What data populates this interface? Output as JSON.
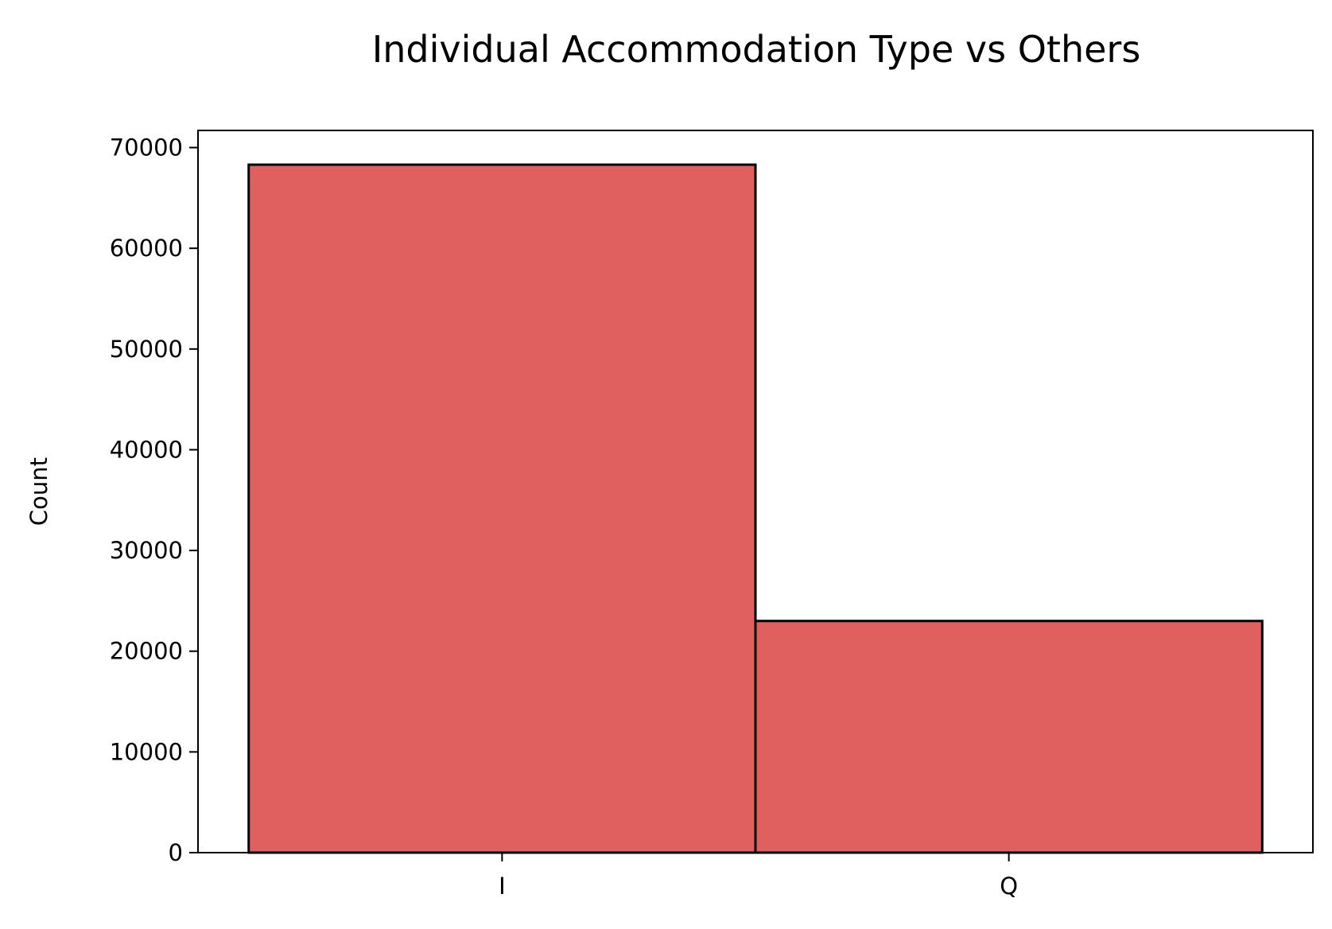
{
  "chart_data": {
    "type": "bar",
    "title": "Individual Accommodation Type vs Others",
    "xlabel": "",
    "ylabel": "Count",
    "categories": [
      "I",
      "Q"
    ],
    "values": [
      68300,
      23000
    ],
    "ylim": [
      0,
      71700
    ],
    "yticks": [
      0,
      10000,
      20000,
      30000,
      40000,
      50000,
      60000,
      70000
    ],
    "grid": false,
    "legend": "none",
    "bar_color": "#e05f5f",
    "edge_color": "#000000"
  }
}
